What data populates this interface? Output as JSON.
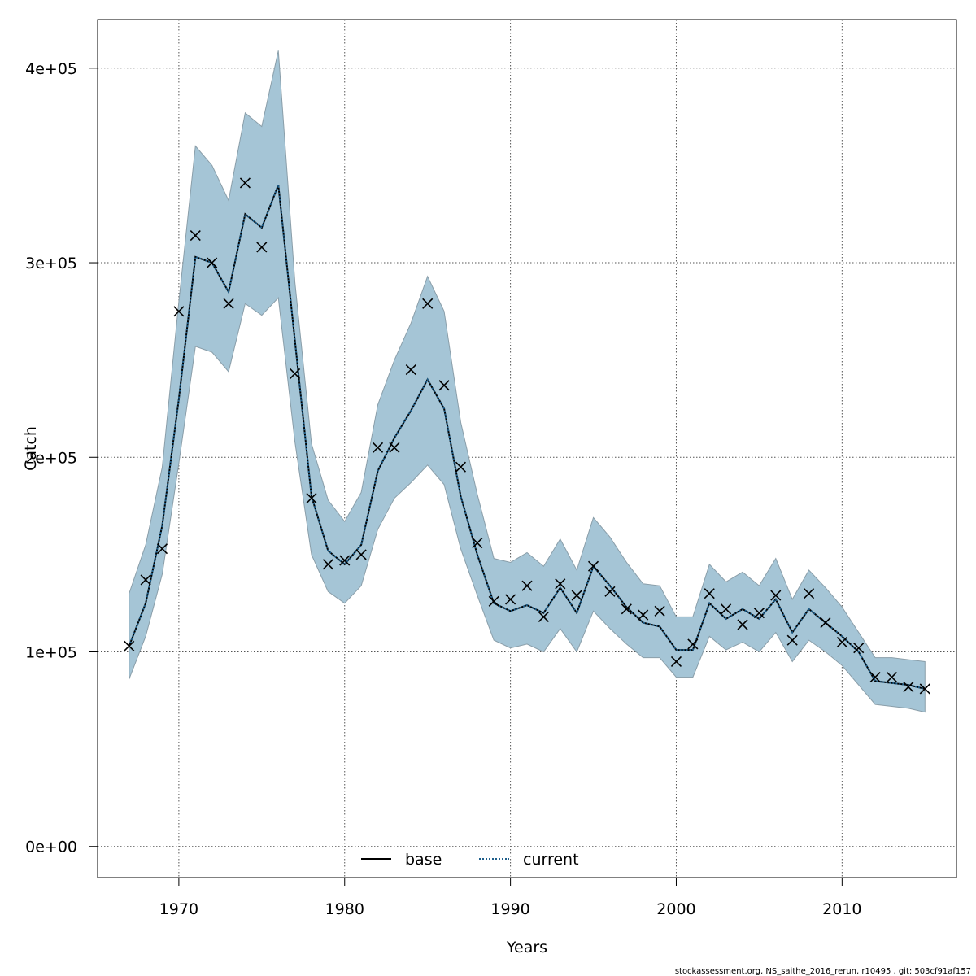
{
  "chart_data": {
    "type": "line",
    "title": "",
    "xlabel": "Years",
    "ylabel": "Catch",
    "xlim": [
      1965.1,
      2016.9
    ],
    "ylim": [
      -16000,
      425000
    ],
    "x_ticks": [
      1970,
      1980,
      1990,
      2000,
      2010
    ],
    "x_tick_labels": [
      "1970",
      "1980",
      "1990",
      "2000",
      "2010"
    ],
    "y_ticks": [
      0,
      100000,
      200000,
      300000,
      400000
    ],
    "y_tick_labels": [
      "0e+00",
      "1e+05",
      "2e+05",
      "3e+05",
      "4e+05"
    ],
    "grid": true,
    "legend_position": "bottom",
    "legend": [
      {
        "label": "base",
        "style": "solid",
        "color": "#000000"
      },
      {
        "label": "current",
        "style": "dotted",
        "color": "#1f5f8b"
      }
    ],
    "colors": {
      "band_fill": "#a5c5d6",
      "band_stroke": "#8a9ea9",
      "current_line": "#1f5f8b",
      "base_line": "#000000"
    },
    "x": [
      1967,
      1968,
      1969,
      1970,
      1971,
      1972,
      1973,
      1974,
      1975,
      1976,
      1977,
      1978,
      1979,
      1980,
      1981,
      1982,
      1983,
      1984,
      1985,
      1986,
      1987,
      1988,
      1989,
      1990,
      1991,
      1992,
      1993,
      1994,
      1995,
      1996,
      1997,
      1998,
      1999,
      2000,
      2001,
      2002,
      2003,
      2004,
      2005,
      2006,
      2007,
      2008,
      2009,
      2010,
      2011,
      2012,
      2013,
      2014,
      2015
    ],
    "series": [
      {
        "name": "base",
        "values": [
          103000,
          125000,
          165000,
          230000,
          303000,
          300000,
          285000,
          325000,
          318000,
          340000,
          260000,
          180000,
          152000,
          145000,
          155000,
          193000,
          210000,
          224000,
          240000,
          225000,
          180000,
          150000,
          125000,
          121000,
          124000,
          120000,
          133000,
          120000,
          144000,
          134000,
          123000,
          115000,
          113000,
          101000,
          101000,
          125000,
          117000,
          122000,
          117000,
          127000,
          110000,
          122000,
          115000,
          108000,
          100000,
          85000,
          84000,
          83000,
          81000
        ]
      },
      {
        "name": "current",
        "values": [
          103000,
          125000,
          165000,
          230000,
          303000,
          300000,
          285000,
          325000,
          318000,
          340000,
          260000,
          180000,
          152000,
          145000,
          155000,
          193000,
          210000,
          224000,
          240000,
          225000,
          180000,
          150000,
          125000,
          121000,
          124000,
          120000,
          133000,
          120000,
          144000,
          134000,
          123000,
          115000,
          113000,
          101000,
          101000,
          125000,
          117000,
          122000,
          117000,
          127000,
          110000,
          122000,
          115000,
          108000,
          100000,
          85000,
          84000,
          83000,
          81000
        ]
      }
    ],
    "band_upper": [
      130000,
      155000,
      195000,
      280000,
      360000,
      350000,
      332000,
      377000,
      370000,
      409000,
      290000,
      207000,
      178000,
      167000,
      182000,
      227000,
      250000,
      269000,
      293000,
      275000,
      218000,
      181000,
      148000,
      146000,
      151000,
      144000,
      158000,
      142000,
      169000,
      159000,
      146000,
      135000,
      134000,
      118000,
      118000,
      145000,
      136000,
      141000,
      134000,
      148000,
      127000,
      142000,
      133000,
      123000,
      110000,
      97000,
      97000,
      96000,
      95000
    ],
    "band_lower": [
      86000,
      108000,
      140000,
      197000,
      257000,
      254000,
      244000,
      279000,
      273000,
      282000,
      208000,
      150000,
      131000,
      125000,
      134000,
      163000,
      179000,
      187000,
      196000,
      186000,
      153000,
      129000,
      106000,
      102000,
      104000,
      100000,
      112000,
      100000,
      121000,
      112000,
      104000,
      97000,
      97000,
      87000,
      87000,
      108000,
      101000,
      105000,
      100000,
      110000,
      95000,
      106000,
      100000,
      93000,
      83000,
      73000,
      72000,
      71000,
      69000
    ],
    "observed": [
      103000,
      137000,
      153000,
      275000,
      314000,
      300000,
      279000,
      341000,
      308000,
      null,
      243000,
      179000,
      145000,
      147000,
      150000,
      205000,
      205000,
      245000,
      279000,
      237000,
      195000,
      156000,
      126000,
      127000,
      134000,
      118000,
      135000,
      129000,
      144000,
      131000,
      122000,
      119000,
      121000,
      95000,
      104000,
      130000,
      122000,
      114000,
      120000,
      129000,
      106000,
      130000,
      115000,
      105000,
      102000,
      87000,
      87000,
      82000,
      81000
    ]
  },
  "footer_text": "stockassessment.org, NS_saithe_2016_rerun, r10495 , git: 503cf91af157"
}
